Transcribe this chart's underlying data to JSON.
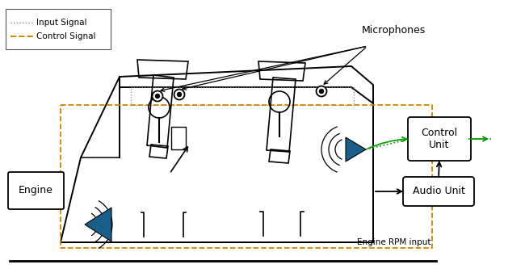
{
  "bg_color": "#ffffff",
  "black": "#000000",
  "gray": "#555555",
  "dotted_color": "#888888",
  "dashed_color": "#cc8800",
  "green_color": "#009900",
  "blue_tri": "#1a5f8a",
  "legend_input": "Input Signal",
  "legend_control": "Control Signal",
  "microphone_label": "Microphones",
  "engine_label": "Engine",
  "control_label": "Control\nUnit",
  "audio_label": "Audio Unit",
  "rpm_label": "Engine RPM input"
}
